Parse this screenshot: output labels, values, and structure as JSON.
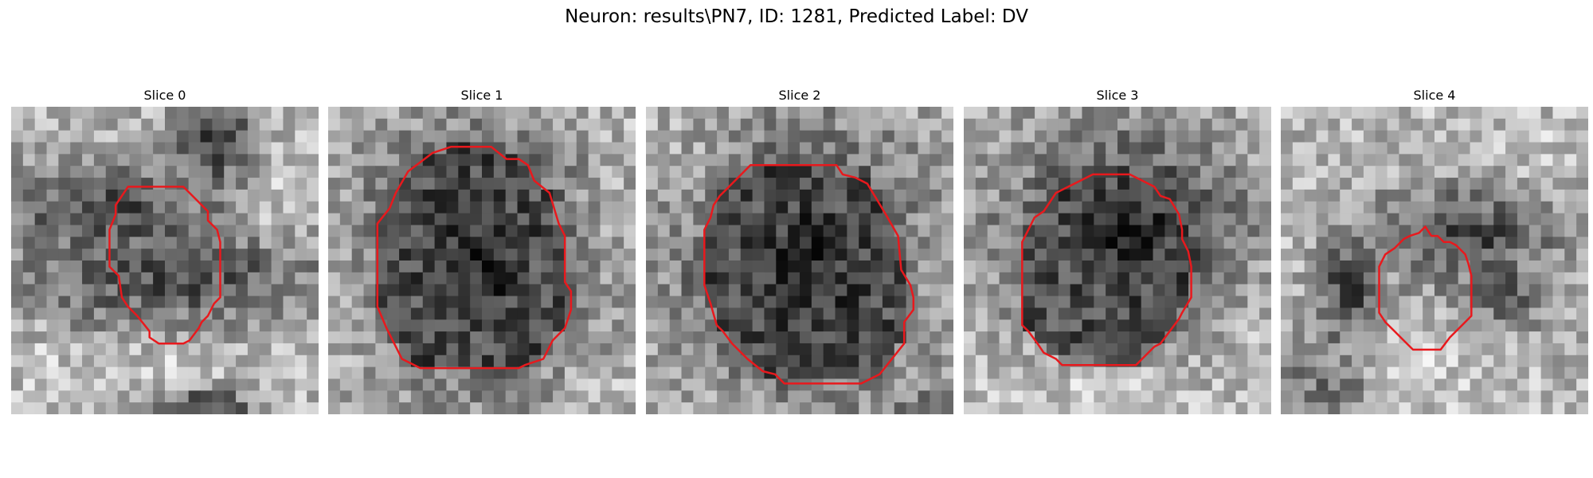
{
  "figure": {
    "title": "Neuron: results\\PN7, ID: 1281, Predicted Label: DV",
    "contour_color": "#e8191d"
  },
  "panels": [
    {
      "title": "Slice 0",
      "contour_fill": null,
      "dark_blobs": [
        [
          0.32,
          0.34,
          0.3,
          0.12,
          0.75
        ],
        [
          0.5,
          0.55,
          0.4,
          0.12,
          0.75
        ],
        [
          0.66,
          0.12,
          0.1,
          0.2,
          0.8
        ],
        [
          0.62,
          0.98,
          0.12,
          0.05,
          0.9
        ],
        [
          0.3,
          0.62,
          0.2,
          0.1,
          0.45
        ]
      ],
      "light_blobs": [
        [
          0.8,
          0.28,
          0.12,
          0.1,
          0.55
        ],
        [
          0.55,
          0.85,
          0.15,
          0.08,
          0.35
        ],
        [
          0.1,
          0.8,
          0.1,
          0.1,
          0.3
        ]
      ],
      "contour": [
        [
          0.38,
          0.26
        ],
        [
          0.56,
          0.26
        ],
        [
          0.64,
          0.34
        ],
        [
          0.64,
          0.37
        ],
        [
          0.67,
          0.4
        ],
        [
          0.68,
          0.44
        ],
        [
          0.68,
          0.62
        ],
        [
          0.66,
          0.64
        ],
        [
          0.64,
          0.68
        ],
        [
          0.62,
          0.7
        ],
        [
          0.61,
          0.72
        ],
        [
          0.58,
          0.76
        ],
        [
          0.56,
          0.77
        ],
        [
          0.48,
          0.77
        ],
        [
          0.45,
          0.75
        ],
        [
          0.45,
          0.73
        ],
        [
          0.41,
          0.68
        ],
        [
          0.38,
          0.65
        ],
        [
          0.36,
          0.62
        ],
        [
          0.35,
          0.55
        ],
        [
          0.32,
          0.52
        ],
        [
          0.32,
          0.4
        ],
        [
          0.34,
          0.35
        ],
        [
          0.34,
          0.32
        ]
      ]
    },
    {
      "title": "Slice 1",
      "contour_fill": null,
      "dark_blobs": [
        [
          0.48,
          0.5,
          0.28,
          0.3,
          1.0
        ],
        [
          0.48,
          0.45,
          0.2,
          0.18,
          0.4
        ]
      ],
      "light_blobs": [
        [
          0.1,
          0.65,
          0.08,
          0.15,
          0.45
        ],
        [
          0.85,
          0.9,
          0.1,
          0.08,
          0.35
        ],
        [
          0.9,
          0.4,
          0.08,
          0.2,
          0.3
        ]
      ],
      "contour": [
        [
          0.34,
          0.15
        ],
        [
          0.4,
          0.13
        ],
        [
          0.53,
          0.13
        ],
        [
          0.58,
          0.17
        ],
        [
          0.62,
          0.17
        ],
        [
          0.65,
          0.19
        ],
        [
          0.67,
          0.24
        ],
        [
          0.72,
          0.28
        ],
        [
          0.75,
          0.38
        ],
        [
          0.77,
          0.42
        ],
        [
          0.77,
          0.57
        ],
        [
          0.79,
          0.6
        ],
        [
          0.79,
          0.66
        ],
        [
          0.77,
          0.72
        ],
        [
          0.73,
          0.76
        ],
        [
          0.7,
          0.82
        ],
        [
          0.64,
          0.84
        ],
        [
          0.62,
          0.85
        ],
        [
          0.3,
          0.85
        ],
        [
          0.24,
          0.82
        ],
        [
          0.22,
          0.78
        ],
        [
          0.19,
          0.72
        ],
        [
          0.16,
          0.65
        ],
        [
          0.16,
          0.6
        ],
        [
          0.16,
          0.38
        ],
        [
          0.2,
          0.33
        ],
        [
          0.22,
          0.28
        ],
        [
          0.26,
          0.21
        ]
      ]
    },
    {
      "title": "Slice 2",
      "contour_fill": null,
      "dark_blobs": [
        [
          0.52,
          0.52,
          0.3,
          0.32,
          1.0
        ],
        [
          0.05,
          0.4,
          0.05,
          0.12,
          0.4
        ],
        [
          0.9,
          0.98,
          0.12,
          0.05,
          0.5
        ]
      ],
      "light_blobs": [
        [
          0.15,
          0.25,
          0.1,
          0.12,
          0.4
        ],
        [
          0.92,
          0.55,
          0.06,
          0.2,
          0.35
        ],
        [
          0.3,
          0.95,
          0.15,
          0.05,
          0.3
        ]
      ],
      "contour": [
        [
          0.34,
          0.19
        ],
        [
          0.43,
          0.19
        ],
        [
          0.62,
          0.19
        ],
        [
          0.64,
          0.22
        ],
        [
          0.68,
          0.23
        ],
        [
          0.72,
          0.25
        ],
        [
          0.75,
          0.3
        ],
        [
          0.78,
          0.35
        ],
        [
          0.82,
          0.42
        ],
        [
          0.83,
          0.53
        ],
        [
          0.86,
          0.58
        ],
        [
          0.87,
          0.62
        ],
        [
          0.87,
          0.66
        ],
        [
          0.84,
          0.7
        ],
        [
          0.84,
          0.77
        ],
        [
          0.8,
          0.82
        ],
        [
          0.76,
          0.87
        ],
        [
          0.7,
          0.9
        ],
        [
          0.68,
          0.9
        ],
        [
          0.45,
          0.9
        ],
        [
          0.42,
          0.87
        ],
        [
          0.38,
          0.86
        ],
        [
          0.33,
          0.82
        ],
        [
          0.28,
          0.77
        ],
        [
          0.25,
          0.73
        ],
        [
          0.23,
          0.71
        ],
        [
          0.21,
          0.64
        ],
        [
          0.19,
          0.58
        ],
        [
          0.19,
          0.4
        ],
        [
          0.21,
          0.36
        ],
        [
          0.22,
          0.32
        ],
        [
          0.24,
          0.29
        ],
        [
          0.25,
          0.28
        ],
        [
          0.3,
          0.23
        ]
      ]
    },
    {
      "title": "Slice 3",
      "contour_fill": null,
      "dark_blobs": [
        [
          0.52,
          0.42,
          0.28,
          0.25,
          1.0
        ],
        [
          0.5,
          0.6,
          0.2,
          0.15,
          0.45
        ]
      ],
      "light_blobs": [
        [
          0.45,
          0.9,
          0.25,
          0.1,
          0.55
        ],
        [
          0.9,
          0.8,
          0.1,
          0.15,
          0.35
        ]
      ],
      "contour": [
        [
          0.42,
          0.22
        ],
        [
          0.54,
          0.22
        ],
        [
          0.6,
          0.25
        ],
        [
          0.62,
          0.26
        ],
        [
          0.64,
          0.29
        ],
        [
          0.67,
          0.3
        ],
        [
          0.7,
          0.35
        ],
        [
          0.71,
          0.4
        ],
        [
          0.71,
          0.43
        ],
        [
          0.73,
          0.47
        ],
        [
          0.74,
          0.52
        ],
        [
          0.74,
          0.62
        ],
        [
          0.71,
          0.67
        ],
        [
          0.7,
          0.69
        ],
        [
          0.67,
          0.73
        ],
        [
          0.64,
          0.77
        ],
        [
          0.62,
          0.78
        ],
        [
          0.58,
          0.82
        ],
        [
          0.56,
          0.84
        ],
        [
          0.54,
          0.84
        ],
        [
          0.32,
          0.84
        ],
        [
          0.3,
          0.82
        ],
        [
          0.26,
          0.8
        ],
        [
          0.24,
          0.77
        ],
        [
          0.21,
          0.73
        ],
        [
          0.19,
          0.71
        ],
        [
          0.19,
          0.44
        ],
        [
          0.21,
          0.4
        ],
        [
          0.23,
          0.36
        ],
        [
          0.26,
          0.34
        ],
        [
          0.3,
          0.28
        ],
        [
          0.34,
          0.26
        ],
        [
          0.36,
          0.25
        ]
      ]
    },
    {
      "title": "Slice 4",
      "contour_fill": null,
      "dark_blobs": [
        [
          0.6,
          0.42,
          0.22,
          0.12,
          0.8
        ],
        [
          0.22,
          0.6,
          0.08,
          0.14,
          0.8
        ],
        [
          0.72,
          0.6,
          0.12,
          0.1,
          0.6
        ],
        [
          0.15,
          0.9,
          0.12,
          0.1,
          0.5
        ]
      ],
      "light_blobs": [
        [
          0.45,
          0.85,
          0.15,
          0.08,
          0.4
        ],
        [
          0.82,
          0.2,
          0.1,
          0.1,
          0.35
        ]
      ],
      "contour": [
        [
          0.42,
          0.42
        ],
        [
          0.45,
          0.41
        ],
        [
          0.47,
          0.39
        ],
        [
          0.49,
          0.42
        ],
        [
          0.51,
          0.42
        ],
        [
          0.53,
          0.44
        ],
        [
          0.55,
          0.44
        ],
        [
          0.57,
          0.45
        ],
        [
          0.6,
          0.48
        ],
        [
          0.61,
          0.51
        ],
        [
          0.62,
          0.55
        ],
        [
          0.62,
          0.68
        ],
        [
          0.59,
          0.71
        ],
        [
          0.55,
          0.75
        ],
        [
          0.52,
          0.79
        ],
        [
          0.43,
          0.79
        ],
        [
          0.4,
          0.76
        ],
        [
          0.37,
          0.73
        ],
        [
          0.34,
          0.7
        ],
        [
          0.32,
          0.67
        ],
        [
          0.32,
          0.52
        ],
        [
          0.34,
          0.48
        ],
        [
          0.37,
          0.46
        ],
        [
          0.4,
          0.43
        ]
      ]
    }
  ]
}
